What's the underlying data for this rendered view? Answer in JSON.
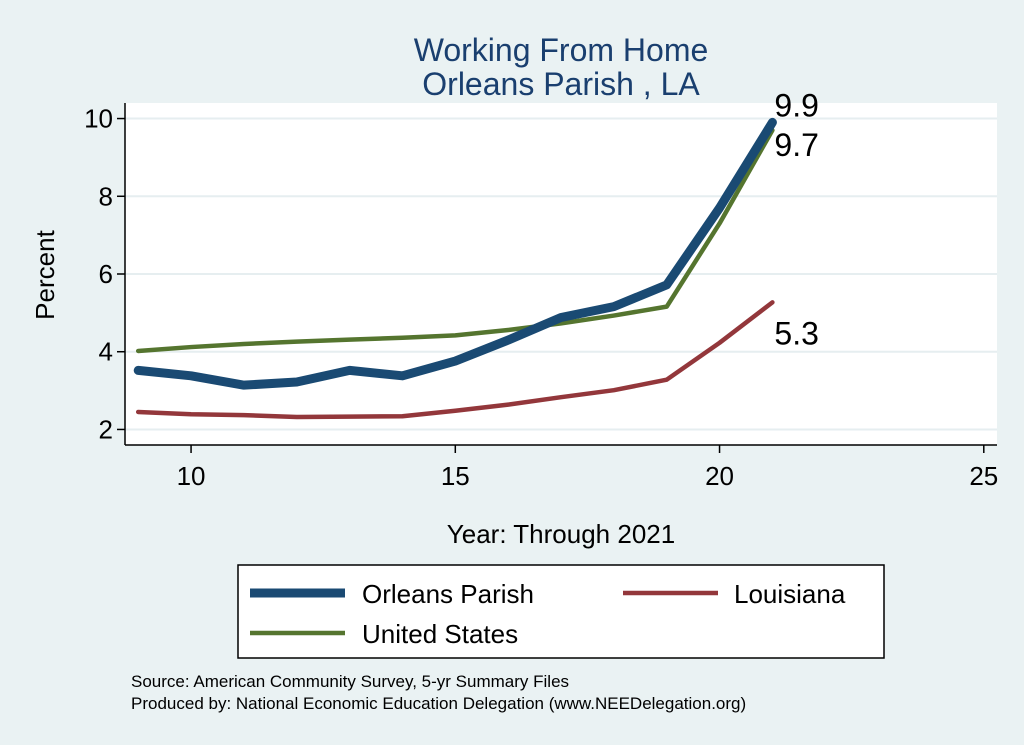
{
  "chart_data": {
    "type": "line",
    "title": [
      "Working From Home",
      "Orleans Parish , LA"
    ],
    "xlabel": "Year: Through 2021",
    "ylabel": "Percent",
    "xlim": [
      8.75,
      25.25
    ],
    "ylim": [
      1.6,
      10.4
    ],
    "xticks": [
      10,
      15,
      20,
      25
    ],
    "yticks": [
      2,
      4,
      6,
      8,
      10
    ],
    "grid": true,
    "x": [
      9,
      10,
      11,
      12,
      13,
      14,
      15,
      16,
      17,
      18,
      19,
      20,
      21
    ],
    "series": [
      {
        "name": "Orleans Parish",
        "color": "#1a4a73",
        "values": [
          3.52,
          3.38,
          3.14,
          3.22,
          3.52,
          3.38,
          3.76,
          4.3,
          4.88,
          5.16,
          5.72,
          7.7,
          9.9
        ],
        "end_label": "9.9"
      },
      {
        "name": "Louisiana",
        "color": "#93373b",
        "values": [
          2.45,
          2.39,
          2.37,
          2.32,
          2.33,
          2.34,
          2.48,
          2.64,
          2.83,
          3.01,
          3.28,
          4.23,
          5.27
        ],
        "end_label": "5.3"
      },
      {
        "name": "United States",
        "color": "#55752f",
        "values": [
          4.02,
          4.12,
          4.2,
          4.26,
          4.31,
          4.36,
          4.42,
          4.56,
          4.73,
          4.93,
          5.16,
          7.3,
          9.7
        ],
        "end_label": "9.7"
      }
    ],
    "legend": {
      "placement": "bottom",
      "entries": [
        "Orleans Parish",
        "Louisiana",
        "United States"
      ]
    },
    "notes": [
      "Source: American Community Survey, 5-yr Summary Files",
      "Produced by: National Economic Education Delegation (www.NEEDelegation.org)"
    ]
  },
  "colors": {
    "background": "#eaf2f3",
    "plot_background": "#ffffff",
    "title": "#1a3f6f"
  }
}
